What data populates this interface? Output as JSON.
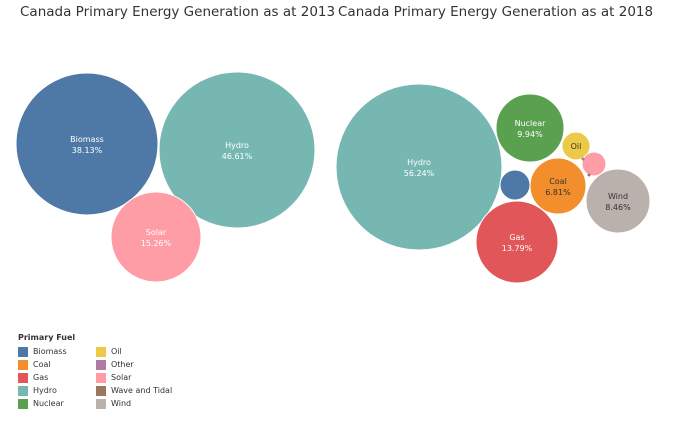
{
  "chart_data": [
    {
      "type": "bubble",
      "title": "Canada Primary Energy Generation as at 2013",
      "bubbles": [
        {
          "category": "Biomass",
          "value_label": "38.13%",
          "value": 38.13
        },
        {
          "category": "Hydro",
          "value_label": "46.61%",
          "value": 46.61
        },
        {
          "category": "Solar",
          "value_label": "15.26%",
          "value": 15.26
        }
      ]
    },
    {
      "type": "bubble",
      "title": "Canada Primary Energy Generation as at 2018",
      "bubbles": [
        {
          "category": "Hydro",
          "value_label": "56.24%",
          "value": 56.24
        },
        {
          "category": "Nuclear",
          "value_label": "9.94%",
          "value": 9.94
        },
        {
          "category": "Oil",
          "value_label": "",
          "value": null
        },
        {
          "category": "Solar",
          "value_label": "",
          "value": null
        },
        {
          "category": "Biomass",
          "value_label": "",
          "value": null
        },
        {
          "category": "Coal",
          "value_label": "6.81%",
          "value": 6.81
        },
        {
          "category": "Wind",
          "value_label": "8.46%",
          "value": 8.46
        },
        {
          "category": "Gas",
          "value_label": "13.79%",
          "value": 13.79
        },
        {
          "category": "Other",
          "value_label": "",
          "value": null
        },
        {
          "category": "Wave and Tidal",
          "value_label": "",
          "value": null
        }
      ]
    }
  ],
  "legend": {
    "title": "Primary Fuel",
    "items": [
      {
        "label": "Biomass",
        "color": "#4e79a7"
      },
      {
        "label": "Coal",
        "color": "#f28e2b"
      },
      {
        "label": "Gas",
        "color": "#e15759"
      },
      {
        "label": "Hydro",
        "color": "#76b7b2"
      },
      {
        "label": "Nuclear",
        "color": "#59a14f"
      },
      {
        "label": "Oil",
        "color": "#edc948"
      },
      {
        "label": "Other",
        "color": "#b07aa1"
      },
      {
        "label": "Solar",
        "color": "#ff9da7"
      },
      {
        "label": "Wave and Tidal",
        "color": "#9c755f"
      },
      {
        "label": "Wind",
        "color": "#bab0ac"
      }
    ]
  }
}
